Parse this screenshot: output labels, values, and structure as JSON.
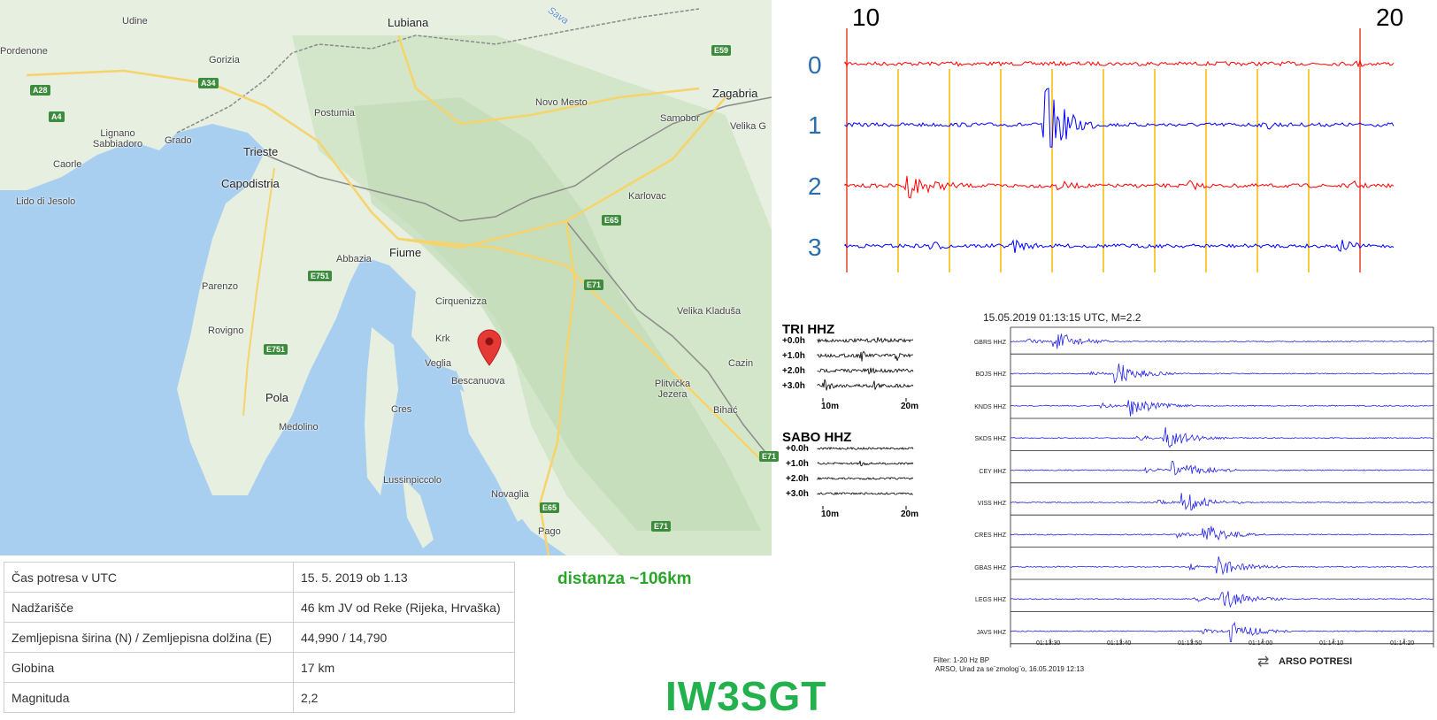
{
  "map": {
    "cities": [
      {
        "name": "Udine"
      },
      {
        "name": "Pordenone"
      },
      {
        "name": "Lubiana"
      },
      {
        "name": "Gorizia"
      },
      {
        "name": "Zagabria"
      },
      {
        "name": "Novo Mesto"
      },
      {
        "name": "Postumia"
      },
      {
        "name": "Samobor"
      },
      {
        "name": "Lignano Sabbiadoro"
      },
      {
        "name": "Grado"
      },
      {
        "name": "Trieste"
      },
      {
        "name": "Velika G"
      },
      {
        "name": "Caorle"
      },
      {
        "name": "Capodistria"
      },
      {
        "name": "Karlovac"
      },
      {
        "name": "Lido di Jesolo"
      },
      {
        "name": "Fiume"
      },
      {
        "name": "Abbazia"
      },
      {
        "name": "Parenzo"
      },
      {
        "name": "Cirquenizza"
      },
      {
        "name": "Velika Kladuša"
      },
      {
        "name": "Rovigno"
      },
      {
        "name": "Krk"
      },
      {
        "name": "Veglia"
      },
      {
        "name": "Bescanuova"
      },
      {
        "name": "Cazin"
      },
      {
        "name": "Plitvička Jezera"
      },
      {
        "name": "Pola"
      },
      {
        "name": "Cres"
      },
      {
        "name": "Bihać"
      },
      {
        "name": "Medolino"
      },
      {
        "name": "Lussinpiccolo"
      },
      {
        "name": "Novaglia"
      },
      {
        "name": "Pago"
      },
      {
        "name": "Sava"
      }
    ],
    "roads": [
      "E59",
      "A34",
      "A28",
      "A4",
      "E65",
      "E751",
      "E71",
      "E751",
      "E71",
      "E65",
      "E71"
    ],
    "marker_icon": "map-pin-icon",
    "marker_color": "#e53935"
  },
  "info_table": [
    {
      "key": "Čas potresa v UTC",
      "value": "15. 5. 2019 ob 1.13"
    },
    {
      "key": "Nadžarišče",
      "value": "46 km JV od Reke (Rijeka, Hrvaška)"
    },
    {
      "key": "Zemljepisna širina (N) / Zemljepisna dolžina (E)",
      "value": "44,990 / 14,790"
    },
    {
      "key": "Globina",
      "value": "17 km"
    },
    {
      "key": "Magnituda",
      "value": "2,2"
    }
  ],
  "distance_label": "distanza ~106km",
  "callsign": "IW3SGT",
  "helicorder": {
    "time_labels": [
      "10",
      "20"
    ],
    "trace_labels": [
      "0",
      "1",
      "2",
      "3"
    ],
    "trace_colors": [
      "#ff0000",
      "#0000ff",
      "#ff0000",
      "#0000ff"
    ],
    "grid_color": "#f5b800"
  },
  "tri_panel": {
    "title": "TRI HHZ",
    "rows": [
      "+0.0h",
      "+1.0h",
      "+2.0h",
      "+3.0h"
    ],
    "x_labels": [
      "10m",
      "20m"
    ]
  },
  "sabo_panel": {
    "title": "SABO HHZ",
    "rows": [
      "+0.0h",
      "+1.0h",
      "+2.0h",
      "+3.0h"
    ],
    "x_labels": [
      "10m",
      "20m"
    ]
  },
  "section": {
    "header": "15.05.2019  01:13:15 UTC, M=2.2",
    "stations": [
      "GBRS HHZ",
      "BOJS HHZ",
      "KNDS HHZ",
      "SKDS HHZ",
      "CEY HHZ",
      "VISS HHZ",
      "CRES HHZ",
      "GBAS HHZ",
      "LEGS HHZ",
      "JAVS HHZ"
    ],
    "time_ticks": [
      "01:13:30",
      "01:13:40",
      "01:13:50",
      "01:14:00",
      "01:14:10",
      "01:14:20"
    ],
    "filter": "Filter: 1-20 Hz BP",
    "credit": "ARSO, Urad za se¨zmolog¨o, 16.05.2019  12:13",
    "logo": "ARSO POTRESI",
    "trace_color": "#2424e6"
  }
}
